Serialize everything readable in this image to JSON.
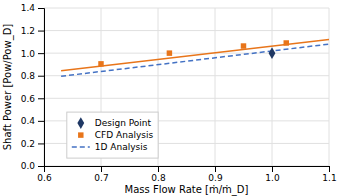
{
  "chart_data": {
    "type": "line",
    "xlabel": "Mass Flow Rate [ṁ/ṁ_D]",
    "ylabel": "Shaft Power [Pow/Pow_D]",
    "xlim": [
      0.6,
      1.1
    ],
    "ylim": [
      0.0,
      1.4
    ],
    "xticks": [
      0.6,
      0.7,
      0.8,
      0.9,
      {
        "value": 1.0,
        "label": "1.0"
      },
      1.1
    ],
    "yticks": [
      {
        "value": 0.0,
        "label": "0.0"
      },
      0.2,
      0.4,
      0.6,
      0.8,
      {
        "value": 1.0,
        "label": "1.0"
      },
      1.2,
      1.4
    ],
    "grid": true,
    "legend": "lower left",
    "series": [
      {
        "name": "1D Analysis",
        "color": "#4472C4",
        "type": "line",
        "line_style": "dashed",
        "x": [
          0.63,
          1.1
        ],
        "values": [
          0.795,
          1.08
        ]
      },
      {
        "color": "#E8751A",
        "type": "line",
        "line_style": "solid",
        "x": [
          0.63,
          1.1
        ],
        "values": [
          0.845,
          1.12
        ]
      },
      {
        "name": "CFD Analysis",
        "color": "#E8751A",
        "type": "scatter",
        "marker": "square",
        "x": [
          0.7,
          0.82,
          0.95,
          1.025
        ],
        "values": [
          0.905,
          1.0,
          1.063,
          1.09
        ]
      },
      {
        "name": "Design Point",
        "color": "#1F3864",
        "type": "scatter",
        "marker": "diamond",
        "x": [
          1.0
        ],
        "values": [
          1.0
        ]
      }
    ]
  }
}
